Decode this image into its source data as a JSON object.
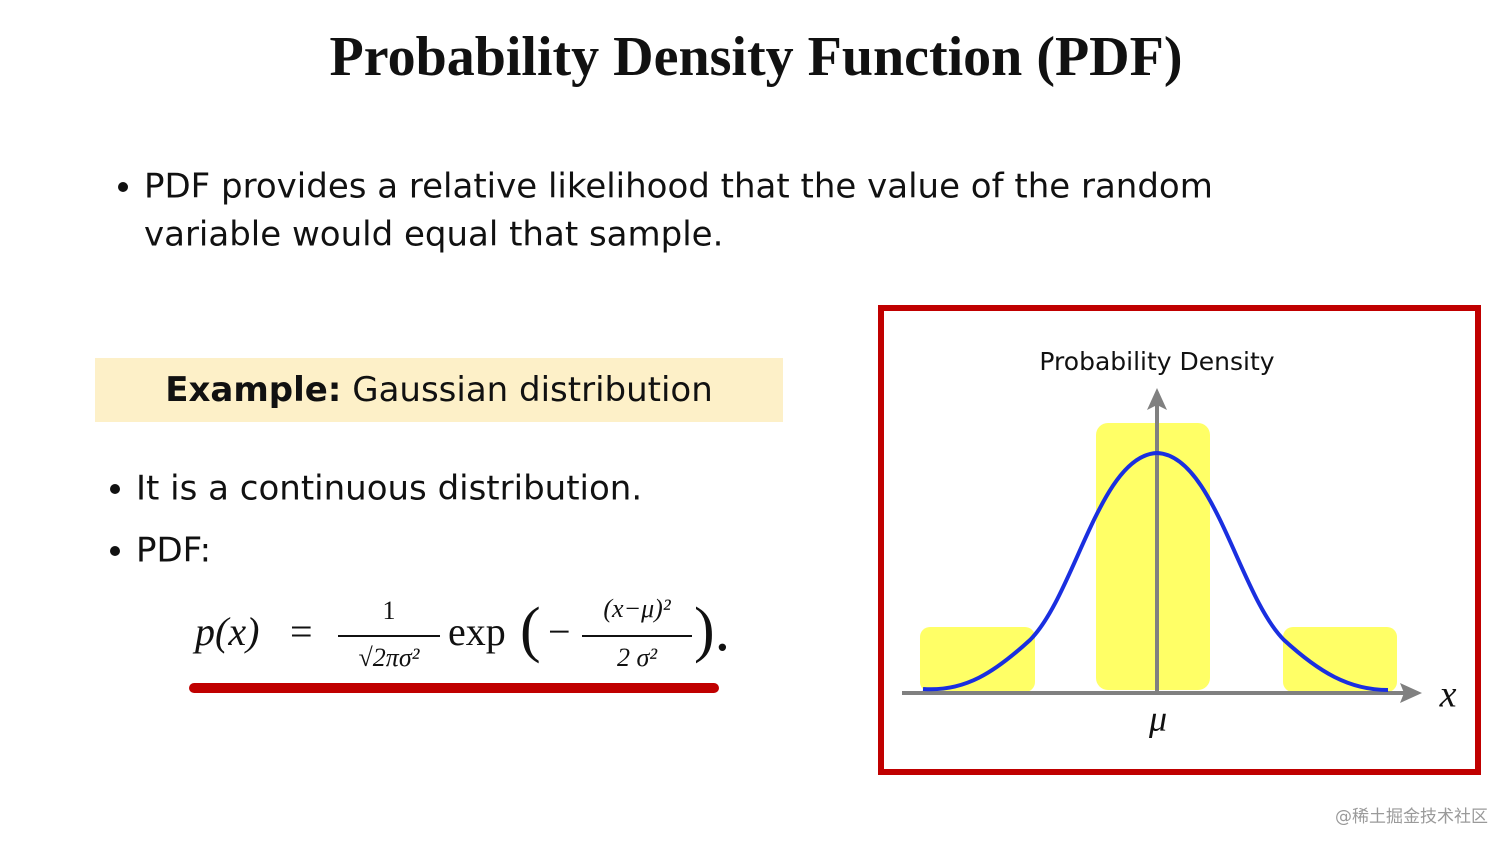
{
  "header": {
    "title": "Probability Density Function (PDF)"
  },
  "intro": {
    "bullet_lines": [
      "PDF provides a relative likelihood that the value of the random",
      "variable would equal that sample."
    ]
  },
  "example": {
    "label": "Example:",
    "text": "Gaussian distribution"
  },
  "bullets": [
    "It is a continuous distribution.",
    "PDF:"
  ],
  "formula": {
    "lhs": "p(x)",
    "eq": "=",
    "numerator": "1",
    "denominator": "√2πσ²",
    "func": "exp",
    "open": "(",
    "minus": "−",
    "inner_numerator": "(x−μ)²",
    "inner_denominator": "2 σ²",
    "close": ")."
  },
  "diagram": {
    "y_label": "Probability Density",
    "mean_label": "μ",
    "x_label": "x"
  },
  "watermark": "@稀土掘金技术社区"
}
